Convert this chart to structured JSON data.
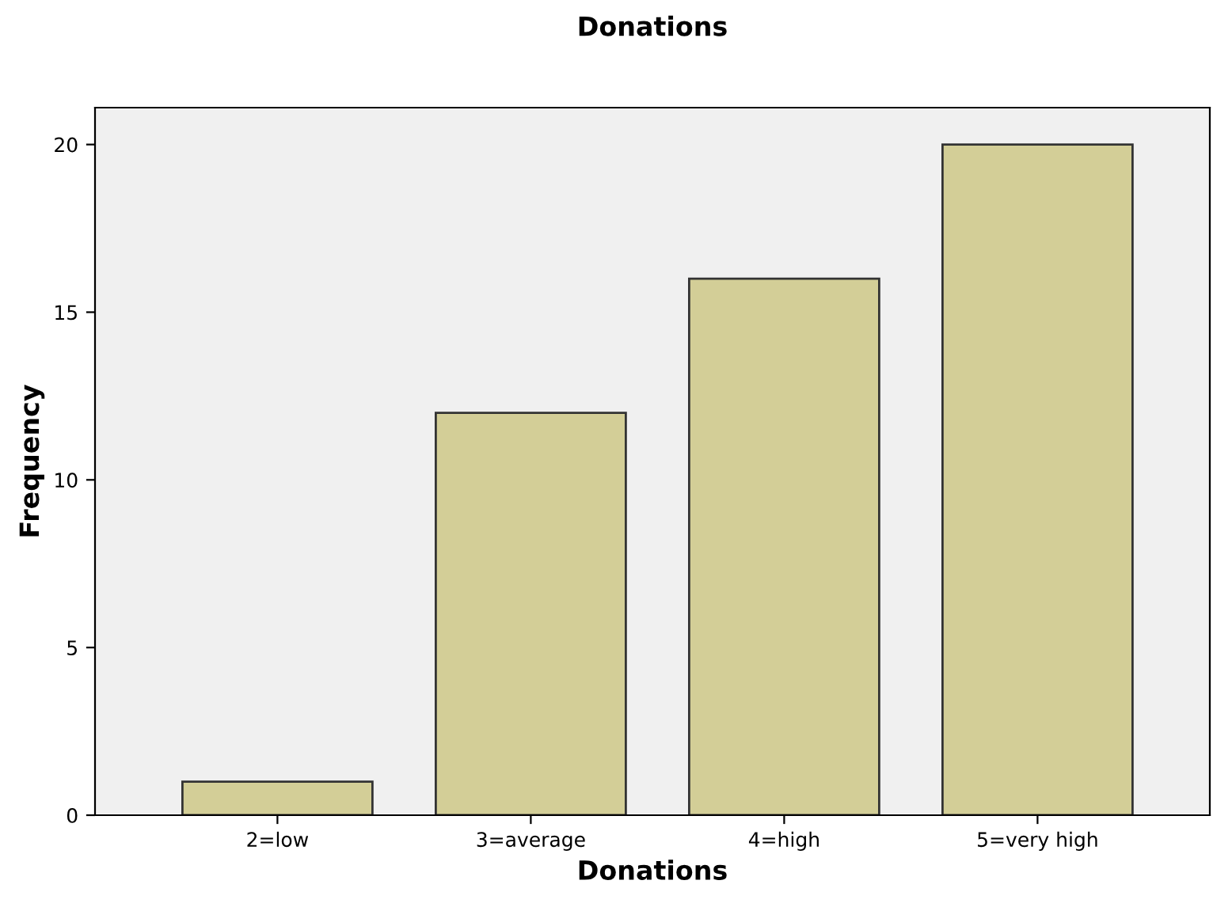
{
  "chart_data": {
    "type": "bar",
    "title": "Donations",
    "xlabel": "Donations",
    "ylabel": "Frequency",
    "categories": [
      "2=low",
      "3=average",
      "4=high",
      "5=very high"
    ],
    "values": [
      1,
      12,
      16,
      20
    ],
    "color": "#d3ce97",
    "ylim": [
      0,
      21.1
    ],
    "yticks": [
      0,
      5,
      10,
      15,
      20
    ],
    "grid": false,
    "legend": false
  }
}
